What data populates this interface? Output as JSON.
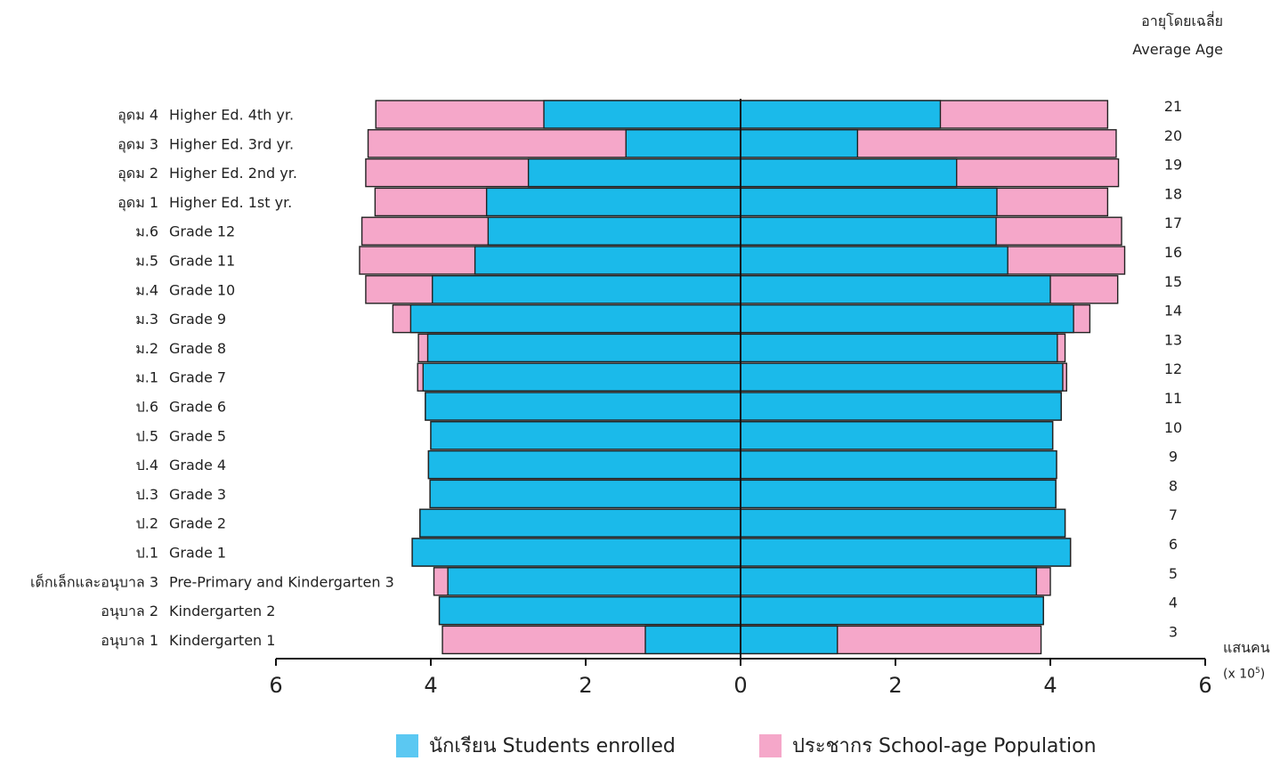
{
  "chart_data": {
    "type": "bar",
    "orientation": "horizontal-population-pyramid",
    "right_header": {
      "line1": "อายุโดยเฉลี่ย",
      "line2": "Average Age"
    },
    "x_unit": {
      "line1": "แสนคน",
      "line2": "(x 10",
      "sup": "5",
      "close": ")"
    },
    "xlim": [
      -6,
      6
    ],
    "x_ticks": [
      "6",
      "4",
      "2",
      "0",
      "2",
      "4",
      "6"
    ],
    "categories": [
      {
        "th": "อุดม 4",
        "en": "Higher Ed. 4th  yr."
      },
      {
        "th": "อุดม 3",
        "en": "Higher Ed. 3rd  yr."
      },
      {
        "th": "อุดม 2",
        "en": "Higher Ed. 2nd  yr."
      },
      {
        "th": "อุดม 1",
        "en": "Higher Ed. 1st  yr."
      },
      {
        "th": "ม.6",
        "en": "Grade 12"
      },
      {
        "th": "ม.5",
        "en": "Grade 11"
      },
      {
        "th": "ม.4",
        "en": "Grade 10"
      },
      {
        "th": "ม.3",
        "en": "Grade 9"
      },
      {
        "th": "ม.2",
        "en": "Grade 8"
      },
      {
        "th": "ม.1",
        "en": "Grade 7"
      },
      {
        "th": "ป.6",
        "en": "Grade 6"
      },
      {
        "th": "ป.5",
        "en": "Grade 5"
      },
      {
        "th": "ป.4",
        "en": "Grade 4"
      },
      {
        "th": "ป.3",
        "en": "Grade 3"
      },
      {
        "th": "ป.2",
        "en": "Grade 2"
      },
      {
        "th": "ป.1",
        "en": "Grade 1"
      },
      {
        "th": "เด็กเล็กและอนุบาล 3",
        "en": "Pre-Primary and Kindergarten 3"
      },
      {
        "th": "อนุบาล 2",
        "en": "Kindergarten 2"
      },
      {
        "th": "อนุบาล 1",
        "en": "Kindergarten 1"
      }
    ],
    "average_age": [
      "21",
      "20",
      "19",
      "18",
      "17",
      "16",
      "15",
      "14",
      "13",
      "12",
      "11",
      "10",
      "9",
      "8",
      "7",
      "6",
      "5",
      "4",
      "3"
    ],
    "series": [
      {
        "name": "นักเรียน Students enrolled",
        "color": "#1bbaea",
        "left": [
          2.54,
          1.48,
          2.74,
          3.28,
          3.26,
          3.43,
          3.98,
          4.26,
          4.04,
          4.1,
          4.07,
          4.0,
          4.03,
          4.01,
          4.14,
          4.24,
          3.78,
          3.89,
          1.23
        ],
        "right": [
          2.58,
          1.51,
          2.79,
          3.31,
          3.3,
          3.45,
          4.0,
          4.3,
          4.09,
          4.16,
          4.14,
          4.03,
          4.08,
          4.07,
          4.19,
          4.26,
          3.82,
          3.91,
          1.25
        ]
      },
      {
        "name": "ประชากร School-age Population",
        "color": "#f5a7c9",
        "left": [
          4.71,
          4.81,
          4.84,
          4.72,
          4.89,
          4.92,
          4.84,
          4.49,
          4.16,
          4.17,
          4.07,
          4.0,
          4.03,
          4.01,
          4.14,
          4.24,
          3.96,
          3.89,
          3.85
        ],
        "right": [
          4.74,
          4.85,
          4.88,
          4.74,
          4.92,
          4.96,
          4.87,
          4.51,
          4.19,
          4.21,
          4.14,
          4.03,
          4.08,
          4.07,
          4.19,
          4.26,
          4.0,
          3.91,
          3.88
        ]
      }
    ]
  },
  "legend": {
    "enrolled": "นักเรียน Students enrolled",
    "population": "ประชากร School-age Population"
  }
}
